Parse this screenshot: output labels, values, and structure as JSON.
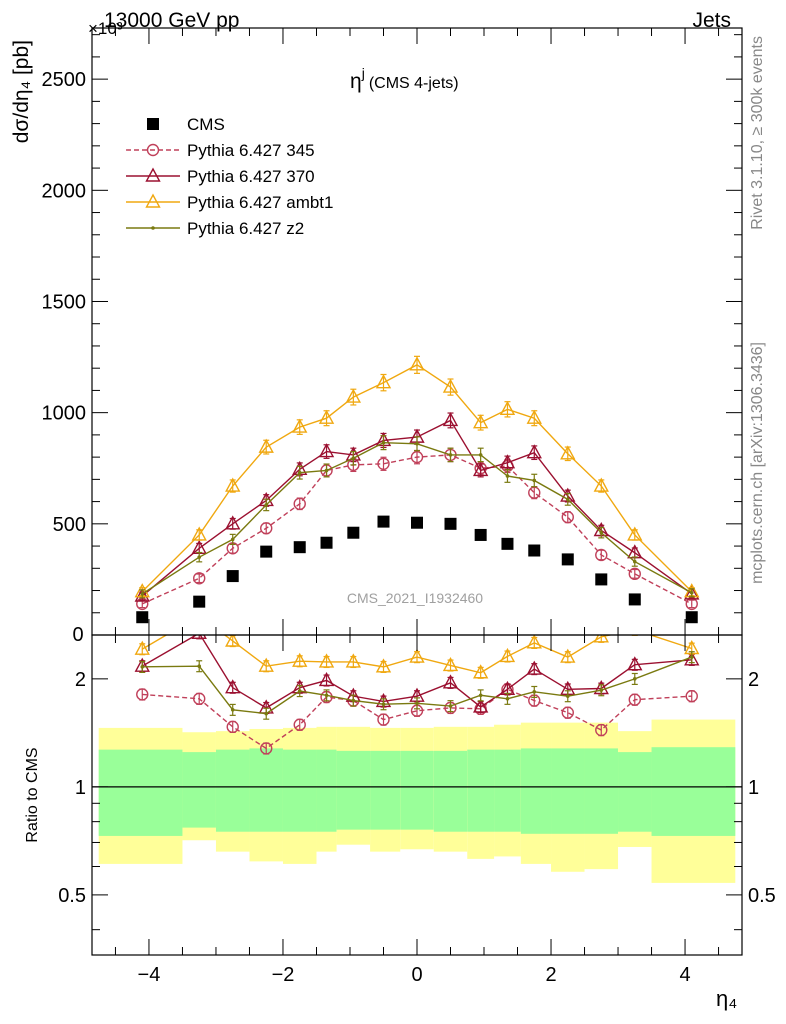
{
  "header": {
    "beam_label": "13000 GeV pp",
    "process_label": "Jets",
    "exponent_label": "×10³"
  },
  "side_labels": {
    "rivet": "Rivet 3.1.10, ≥ 300k events",
    "mcplots": "mcplots.cern.ch [arXiv:1306.3436]"
  },
  "watermark": "CMS_2021_I1932460",
  "colors": {
    "cms": "#000000",
    "p345": "#c0405a",
    "p370": "#9b1030",
    "ambt1": "#f0a810",
    "z2": "#7a7a10",
    "band_inner": "#99ff99",
    "band_outer": "#ffff99"
  },
  "chart_data": [
    {
      "type": "line",
      "title": "η^j (CMS 4-jets)",
      "title_main": "η",
      "title_sup": "j",
      "title_rest": "(CMS 4-jets)",
      "ylabel": "dσ/dη₄ [pb]",
      "xlim": [
        -4.85,
        4.85
      ],
      "ylim": [
        0,
        2730
      ],
      "yticks": [
        500,
        1000,
        1500,
        2000,
        2500
      ],
      "y_zero_label": "0",
      "legend_position": "top-left",
      "x": [
        -4.1,
        -3.25,
        -2.75,
        -2.25,
        -1.75,
        -1.35,
        -0.95,
        -0.5,
        0.0,
        0.5,
        0.95,
        1.35,
        1.75,
        2.25,
        2.75,
        3.25,
        4.1
      ],
      "series": [
        {
          "name": "CMS",
          "key": "cms",
          "style": "square",
          "values": [
            80,
            150,
            265,
            375,
            395,
            415,
            460,
            510,
            505,
            500,
            450,
            410,
            380,
            340,
            250,
            160,
            80
          ]
        },
        {
          "name": "Pythia 6.427 345",
          "key": "p345",
          "style": "circle-dashed",
          "values": [
            140,
            255,
            390,
            480,
            590,
            740,
            765,
            770,
            800,
            810,
            750,
            760,
            640,
            530,
            360,
            275,
            140
          ]
        },
        {
          "name": "Pythia 6.427 370",
          "key": "p370",
          "style": "triangle",
          "values": [
            175,
            390,
            500,
            605,
            745,
            825,
            810,
            875,
            890,
            965,
            740,
            775,
            820,
            625,
            470,
            370,
            185
          ]
        },
        {
          "name": "Pythia 6.427 ambt1",
          "key": "ambt1",
          "style": "triangle",
          "values": [
            195,
            450,
            670,
            845,
            935,
            975,
            1070,
            1135,
            1215,
            1115,
            955,
            1015,
            975,
            815,
            670,
            450,
            195
          ]
        },
        {
          "name": "Pythia 6.427 z2",
          "key": "z2",
          "style": "dot",
          "values": [
            185,
            350,
            430,
            585,
            730,
            740,
            795,
            865,
            860,
            810,
            810,
            715,
            695,
            610,
            460,
            330,
            190
          ]
        }
      ]
    },
    {
      "type": "line",
      "ylabel": "Ratio to CMS",
      "xlabel": "η₄",
      "xlim": [
        -4.85,
        4.85
      ],
      "ylim": [
        0.34,
        2.65
      ],
      "xticks": [
        -4,
        -2,
        0,
        2,
        4
      ],
      "xtick_labels": [
        "−4",
        "−2",
        "0",
        "2",
        "4"
      ],
      "yticks": [
        0.5,
        1,
        2
      ],
      "ytick_labels": [
        "0.5",
        "1",
        "2"
      ],
      "x": [
        -4.1,
        -3.25,
        -2.75,
        -2.25,
        -1.75,
        -1.35,
        -0.95,
        -0.5,
        0.0,
        0.5,
        0.95,
        1.35,
        1.75,
        2.25,
        2.75,
        3.25,
        4.1
      ],
      "bins": [
        [
          -4.75,
          -3.5
        ],
        [
          -3.5,
          -3.0
        ],
        [
          -3.0,
          -2.5
        ],
        [
          -2.5,
          -2.0
        ],
        [
          -2.0,
          -1.5
        ],
        [
          -1.5,
          -1.2
        ],
        [
          -1.2,
          -0.7
        ],
        [
          -0.7,
          -0.25
        ],
        [
          -0.25,
          0.25
        ],
        [
          0.25,
          0.75
        ],
        [
          0.75,
          1.15
        ],
        [
          1.15,
          1.55
        ],
        [
          1.55,
          2.0
        ],
        [
          2.0,
          2.5
        ],
        [
          2.5,
          3.0
        ],
        [
          3.0,
          3.5
        ],
        [
          3.5,
          4.75
        ]
      ],
      "band_inner_lo": [
        0.73,
        0.77,
        0.75,
        0.75,
        0.75,
        0.75,
        0.76,
        0.76,
        0.76,
        0.75,
        0.75,
        0.75,
        0.74,
        0.74,
        0.74,
        0.75,
        0.73
      ],
      "band_inner_hi": [
        1.27,
        1.25,
        1.27,
        1.28,
        1.27,
        1.27,
        1.26,
        1.26,
        1.26,
        1.26,
        1.27,
        1.27,
        1.28,
        1.28,
        1.28,
        1.25,
        1.29
      ],
      "band_outer_lo": [
        0.61,
        0.71,
        0.66,
        0.62,
        0.61,
        0.66,
        0.69,
        0.66,
        0.67,
        0.66,
        0.63,
        0.64,
        0.61,
        0.58,
        0.59,
        0.68,
        0.54
      ],
      "band_outer_hi": [
        1.46,
        1.42,
        1.43,
        1.45,
        1.46,
        1.47,
        1.47,
        1.46,
        1.46,
        1.47,
        1.47,
        1.49,
        1.51,
        1.51,
        1.51,
        1.43,
        1.54
      ],
      "series": [
        {
          "name": "Pythia 6.427 345",
          "key": "p345",
          "style": "circle-dashed",
          "values": [
            1.81,
            1.76,
            1.47,
            1.28,
            1.49,
            1.78,
            1.74,
            1.54,
            1.63,
            1.66,
            1.65,
            1.87,
            1.74,
            1.61,
            1.44,
            1.75,
            1.79
          ]
        },
        {
          "name": "Pythia 6.427 370",
          "key": "p370",
          "style": "triangle",
          "values": [
            2.17,
            2.68,
            1.89,
            1.66,
            1.89,
            1.98,
            1.79,
            1.73,
            1.79,
            1.95,
            1.67,
            1.87,
            2.13,
            1.87,
            1.88,
            2.19,
            2.26
          ]
        },
        {
          "name": "Pythia 6.427 ambt1",
          "key": "ambt1",
          "style": "triangle",
          "values": [
            2.42,
            3.0,
            2.55,
            2.17,
            2.24,
            2.23,
            2.23,
            2.16,
            2.3,
            2.18,
            2.08,
            2.31,
            2.52,
            2.3,
            2.62,
            2.74,
            2.43
          ]
        },
        {
          "name": "Pythia 6.427 z2",
          "key": "z2",
          "style": "dot",
          "values": [
            2.16,
            2.17,
            1.64,
            1.6,
            1.85,
            1.8,
            1.74,
            1.7,
            1.71,
            1.68,
            1.8,
            1.76,
            1.84,
            1.79,
            1.86,
            2.0,
            2.3
          ]
        }
      ]
    }
  ]
}
